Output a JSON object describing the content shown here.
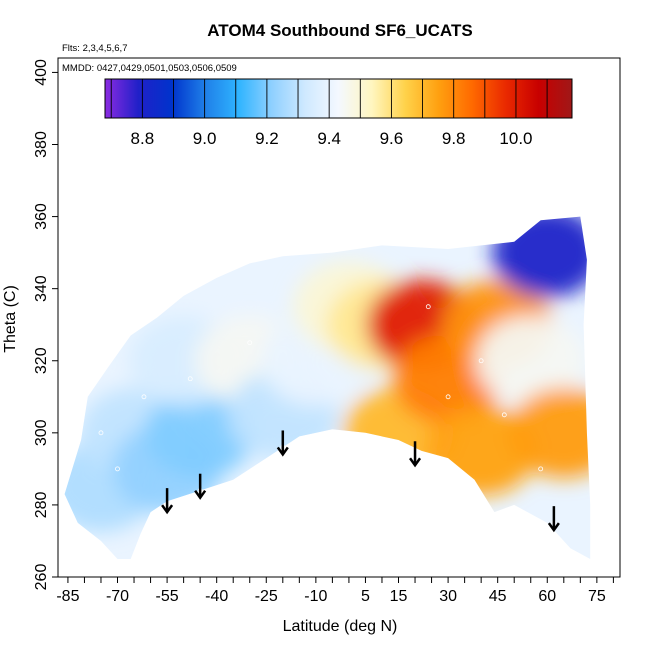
{
  "chart_data": {
    "type": "heatmap",
    "title": "ATOM4 Southbound SF6_UCATS",
    "annotations": [
      "Flts: 2,3,4,5,6,7",
      "MMDD: 0427,0429,0501,0503,0506,0509"
    ],
    "xlabel": "Latitude (deg N)",
    "ylabel": "Theta (C)",
    "xlim": [
      -88,
      82
    ],
    "ylim": [
      260,
      404
    ],
    "x_ticks": [
      -85,
      -70,
      -55,
      -40,
      -25,
      -10,
      5,
      15,
      30,
      45,
      60,
      75
    ],
    "x_tick_labels": [
      "-85",
      "-70",
      "-55",
      "-40",
      "-25",
      "-10",
      "5",
      "15",
      "30",
      "45",
      "60",
      "75"
    ],
    "y_ticks": [
      260,
      280,
      300,
      320,
      340,
      360,
      380,
      400
    ],
    "y_tick_labels": [
      "260",
      "280",
      "300",
      "320",
      "340",
      "360",
      "380",
      "400"
    ],
    "colorbar": {
      "range": [
        8.68,
        10.18
      ],
      "ticks": [
        8.8,
        9.0,
        9.2,
        9.4,
        9.6,
        9.8,
        10.0
      ],
      "tick_labels": [
        "8.8",
        "9.0",
        "9.2",
        "9.4",
        "9.6",
        "9.8",
        "10.0"
      ],
      "colors": [
        "#8b2be2",
        "#2020c8",
        "#0033cc",
        "#1f7fe8",
        "#2fb4ff",
        "#8fd0ff",
        "#cfe9ff",
        "#f4f8ff",
        "#fff6c0",
        "#ffd24a",
        "#ffa010",
        "#ff6a00",
        "#ea2a00",
        "#c80000",
        "#a01818"
      ]
    },
    "field": {
      "regions": [
        {
          "lat": -75,
          "theta": 285,
          "value": 9.27
        },
        {
          "lat": -65,
          "theta": 300,
          "value": 9.3
        },
        {
          "lat": -55,
          "theta": 290,
          "value": 9.22
        },
        {
          "lat": -45,
          "theta": 300,
          "value": 9.2
        },
        {
          "lat": -50,
          "theta": 320,
          "value": 9.35
        },
        {
          "lat": -30,
          "theta": 320,
          "value": 9.45
        },
        {
          "lat": -20,
          "theta": 305,
          "value": 9.3
        },
        {
          "lat": -10,
          "theta": 320,
          "value": 9.4
        },
        {
          "lat": 0,
          "theta": 335,
          "value": 9.5
        },
        {
          "lat": 10,
          "theta": 330,
          "value": 9.58
        },
        {
          "lat": 15,
          "theta": 300,
          "value": 9.7
        },
        {
          "lat": 22,
          "theta": 330,
          "value": 10.0
        },
        {
          "lat": 30,
          "theta": 315,
          "value": 9.82
        },
        {
          "lat": 40,
          "theta": 295,
          "value": 9.75
        },
        {
          "lat": 45,
          "theta": 330,
          "value": 9.78
        },
        {
          "lat": 55,
          "theta": 320,
          "value": 9.45
        },
        {
          "lat": 60,
          "theta": 350,
          "value": 8.8
        },
        {
          "lat": 65,
          "theta": 300,
          "value": 9.76
        }
      ]
    },
    "observations": [
      {
        "lat": -55,
        "theta": 280
      },
      {
        "lat": -45,
        "theta": 284
      },
      {
        "lat": -20,
        "theta": 296
      },
      {
        "lat": 20,
        "theta": 293
      },
      {
        "lat": 62,
        "theta": 275
      },
      {
        "lat": -75,
        "theta": 300
      },
      {
        "lat": -62,
        "theta": 310
      },
      {
        "lat": -70,
        "theta": 290
      },
      {
        "lat": -48,
        "theta": 315
      },
      {
        "lat": 30,
        "theta": 310
      },
      {
        "lat": 40,
        "theta": 320
      },
      {
        "lat": 58,
        "theta": 290
      },
      {
        "lat": 24,
        "theta": 335
      },
      {
        "lat": 47,
        "theta": 305
      },
      {
        "lat": -30,
        "theta": 325
      }
    ],
    "profile_markers_lat": [
      -55,
      -45,
      -20,
      20,
      62
    ]
  }
}
